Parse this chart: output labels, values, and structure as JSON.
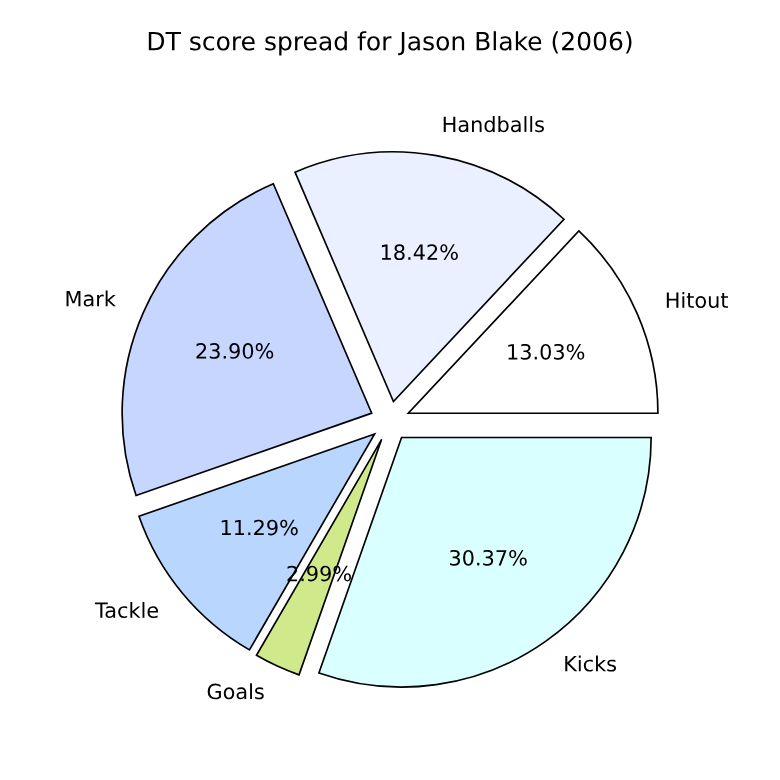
{
  "chart_data": {
    "type": "pie",
    "title": "DT score spread for Jason Blake (2006)",
    "categories": [
      "Hitout",
      "Handballs",
      "Mark",
      "Tackle",
      "Goals",
      "Kicks"
    ],
    "values": [
      13.03,
      18.42,
      23.9,
      11.29,
      2.99,
      30.37
    ],
    "value_labels": [
      "13.03%",
      "18.42%",
      "23.90%",
      "11.29%",
      "2.99%",
      "30.37%"
    ],
    "colors": [
      "#ffffff",
      "#eaf0ff",
      "#c6d6ff",
      "#b9d6ff",
      "#cfe98b",
      "#d9ffff"
    ]
  }
}
